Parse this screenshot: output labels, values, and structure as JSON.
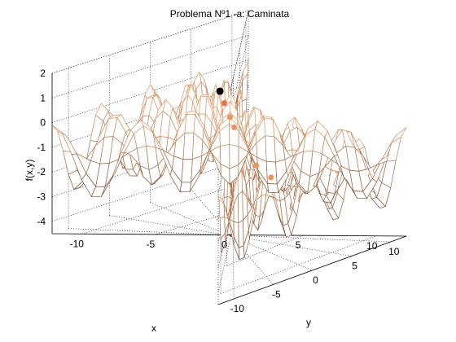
{
  "chart_data": {
    "type": "surface",
    "title": "Problema Nº1 -a: Caminata",
    "xlabel": "x",
    "ylabel": "y",
    "zlabel": "f(x,y)",
    "xlim": [
      -12,
      12
    ],
    "ylim": [
      -12,
      12
    ],
    "zlim": [
      -4.5,
      2
    ],
    "xticks": [
      "-10",
      "-5",
      "0",
      "5",
      "10"
    ],
    "yticks": [
      "-10",
      "-5",
      "0",
      "5",
      "10"
    ],
    "zticks": [
      "-4",
      "-3",
      "-2",
      "-1",
      "0",
      "1",
      "2"
    ],
    "grid": true,
    "colormap": [
      "#3a2418",
      "#8a5a3c",
      "#d99a6c",
      "#f2bd92"
    ],
    "surface_function": "approx. egg-crate: -1.25 + 0.8*cos(1.2*sqrt(x^2+y^2))*... (sampled to match shape, range about -4.3 to 1.7)",
    "walk_points": [
      {
        "x": -1.6,
        "y": 0.4,
        "z": 1.2,
        "color": "#000000"
      },
      {
        "x": -0.9,
        "y": 1.2,
        "z": 0.8,
        "color": "#e07a4a"
      },
      {
        "x": -0.3,
        "y": -2.2,
        "z": 0.3,
        "color": "#e8935c"
      },
      {
        "x": 0.5,
        "y": -2.6,
        "z": 0.0,
        "color": "#e8935c"
      },
      {
        "x": 5.5,
        "y": -3.5,
        "z": -0.8,
        "color": "#e8935c"
      },
      {
        "x": 6.5,
        "y": -1.0,
        "z": -1.3,
        "color": "#e8935c"
      }
    ]
  }
}
